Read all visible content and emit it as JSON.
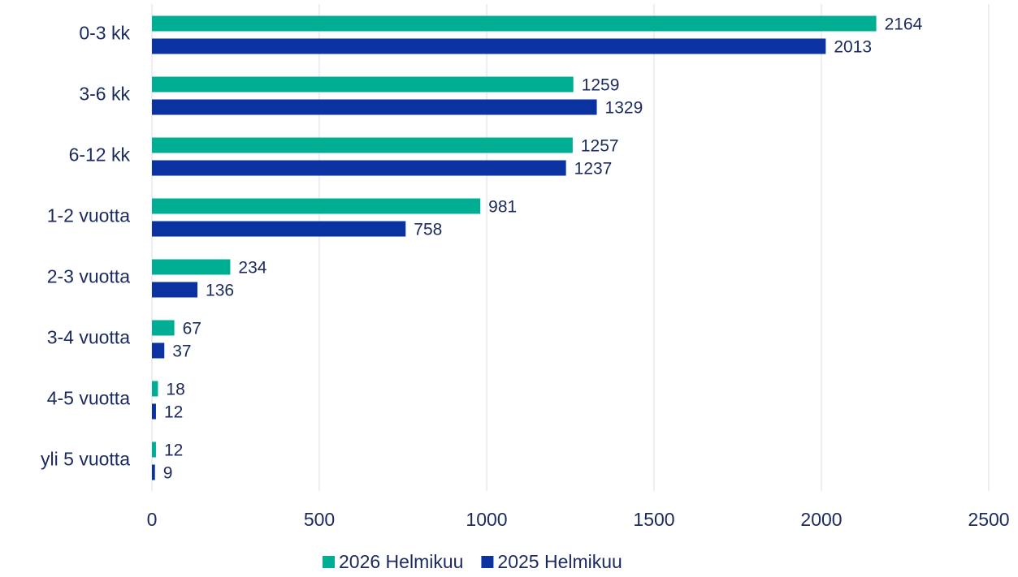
{
  "chart_data": {
    "type": "bar",
    "orientation": "horizontal",
    "categories": [
      "0-3 kk",
      "3-6 kk",
      "6-12 kk",
      "1-2 vuotta",
      "2-3 vuotta",
      "3-4 vuotta",
      "4-5 vuotta",
      "yli 5 vuotta"
    ],
    "series": [
      {
        "name": "2026 Helmikuu",
        "color": "#00ae94",
        "values": [
          2164,
          1259,
          1257,
          981,
          234,
          67,
          18,
          12
        ]
      },
      {
        "name": "2025 Helmikuu",
        "color": "#0a32a0",
        "values": [
          2013,
          1329,
          1237,
          758,
          136,
          37,
          12,
          9
        ]
      }
    ],
    "xlim": [
      0,
      2500
    ],
    "xticks": [
      0,
      500,
      1000,
      1500,
      2000,
      2500
    ],
    "grid": true,
    "legend": "bottom"
  }
}
